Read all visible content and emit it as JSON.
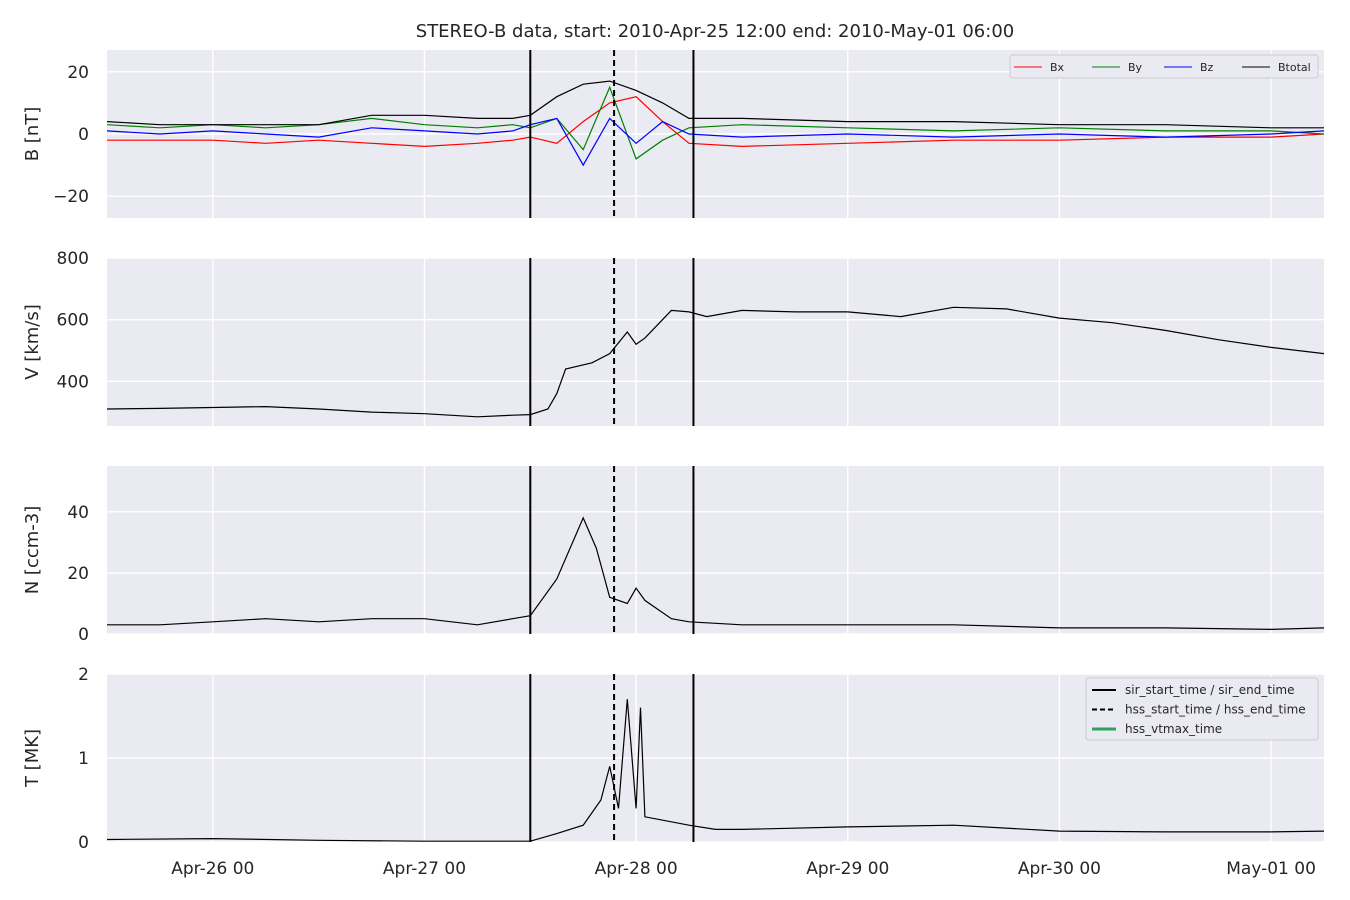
{
  "title": "STEREO-B data, start: 2010-Apr-25 12:00  end: 2010-May-01 06:00",
  "chart_data": {
    "type": "line",
    "x_range": [
      "2010-04-25T12:00",
      "2010-05-01T06:00"
    ],
    "x_ticks": [
      {
        "t": "2010-04-26T00:00",
        "label": "Apr-26 00"
      },
      {
        "t": "2010-04-27T00:00",
        "label": "Apr-27 00"
      },
      {
        "t": "2010-04-28T00:00",
        "label": "Apr-28 00"
      },
      {
        "t": "2010-04-29T00:00",
        "label": "Apr-29 00"
      },
      {
        "t": "2010-04-30T00:00",
        "label": "Apr-30 00"
      },
      {
        "t": "2010-05-01T00:00",
        "label": "May-01 00"
      }
    ],
    "events": [
      {
        "t": "2010-04-27T12:00",
        "style": "solid"
      },
      {
        "t": "2010-04-27T21:30",
        "style": "dashed"
      },
      {
        "t": "2010-04-28T06:30",
        "style": "solid"
      }
    ],
    "panels": [
      {
        "id": "B",
        "ylabel": "B [nT]",
        "ylim": [
          -27,
          27
        ],
        "yticks": [
          {
            "v": -20,
            "label": "−20"
          },
          {
            "v": 0,
            "label": "0"
          },
          {
            "v": 20,
            "label": "20"
          }
        ],
        "legend": {
          "placement": "top-right",
          "entries": [
            "Bx",
            "By",
            "Bz",
            "Btotal"
          ]
        },
        "series": [
          {
            "name": "Bx",
            "color": "#ff0000",
            "points": [
              [
                "2010-04-25T12:00",
                -2
              ],
              [
                "2010-04-25T18:00",
                -2
              ],
              [
                "2010-04-26T00:00",
                -2
              ],
              [
                "2010-04-26T06:00",
                -3
              ],
              [
                "2010-04-26T12:00",
                -2
              ],
              [
                "2010-04-26T18:00",
                -3
              ],
              [
                "2010-04-27T00:00",
                -4
              ],
              [
                "2010-04-27T06:00",
                -3
              ],
              [
                "2010-04-27T10:00",
                -2
              ],
              [
                "2010-04-27T12:00",
                -1
              ],
              [
                "2010-04-27T15:00",
                -3
              ],
              [
                "2010-04-27T18:00",
                4
              ],
              [
                "2010-04-27T21:00",
                10
              ],
              [
                "2010-04-28T00:00",
                12
              ],
              [
                "2010-04-28T03:00",
                4
              ],
              [
                "2010-04-28T06:00",
                -3
              ],
              [
                "2010-04-28T12:00",
                -4
              ],
              [
                "2010-04-29T00:00",
                -3
              ],
              [
                "2010-04-29T12:00",
                -2
              ],
              [
                "2010-04-30T00:00",
                -2
              ],
              [
                "2010-04-30T12:00",
                -1
              ],
              [
                "2010-05-01T00:00",
                -1
              ],
              [
                "2010-05-01T06:00",
                0
              ]
            ]
          },
          {
            "name": "By",
            "color": "#008000",
            "points": [
              [
                "2010-04-25T12:00",
                3
              ],
              [
                "2010-04-25T18:00",
                2
              ],
              [
                "2010-04-26T00:00",
                3
              ],
              [
                "2010-04-26T06:00",
                2
              ],
              [
                "2010-04-26T12:00",
                3
              ],
              [
                "2010-04-26T18:00",
                5
              ],
              [
                "2010-04-27T00:00",
                3
              ],
              [
                "2010-04-27T06:00",
                2
              ],
              [
                "2010-04-27T10:00",
                3
              ],
              [
                "2010-04-27T12:00",
                2
              ],
              [
                "2010-04-27T15:00",
                5
              ],
              [
                "2010-04-27T18:00",
                -5
              ],
              [
                "2010-04-27T21:00",
                15
              ],
              [
                "2010-04-28T00:00",
                -8
              ],
              [
                "2010-04-28T03:00",
                -2
              ],
              [
                "2010-04-28T06:00",
                2
              ],
              [
                "2010-04-28T12:00",
                3
              ],
              [
                "2010-04-29T00:00",
                2
              ],
              [
                "2010-04-29T12:00",
                1
              ],
              [
                "2010-04-30T00:00",
                2
              ],
              [
                "2010-04-30T12:00",
                1
              ],
              [
                "2010-05-01T00:00",
                1
              ],
              [
                "2010-05-01T06:00",
                0
              ]
            ]
          },
          {
            "name": "Bz",
            "color": "#0000ff",
            "points": [
              [
                "2010-04-25T12:00",
                1
              ],
              [
                "2010-04-25T18:00",
                0
              ],
              [
                "2010-04-26T00:00",
                1
              ],
              [
                "2010-04-26T06:00",
                0
              ],
              [
                "2010-04-26T12:00",
                -1
              ],
              [
                "2010-04-26T18:00",
                2
              ],
              [
                "2010-04-27T00:00",
                1
              ],
              [
                "2010-04-27T06:00",
                0
              ],
              [
                "2010-04-27T10:00",
                1
              ],
              [
                "2010-04-27T12:00",
                3
              ],
              [
                "2010-04-27T15:00",
                5
              ],
              [
                "2010-04-27T18:00",
                -10
              ],
              [
                "2010-04-27T21:00",
                5
              ],
              [
                "2010-04-28T00:00",
                -3
              ],
              [
                "2010-04-28T03:00",
                4
              ],
              [
                "2010-04-28T06:00",
                0
              ],
              [
                "2010-04-28T12:00",
                -1
              ],
              [
                "2010-04-29T00:00",
                0
              ],
              [
                "2010-04-29T12:00",
                -1
              ],
              [
                "2010-04-30T00:00",
                0
              ],
              [
                "2010-04-30T12:00",
                -1
              ],
              [
                "2010-05-01T00:00",
                0
              ],
              [
                "2010-05-01T06:00",
                1
              ]
            ]
          },
          {
            "name": "Btotal",
            "color": "#000000",
            "points": [
              [
                "2010-04-25T12:00",
                4
              ],
              [
                "2010-04-25T18:00",
                3
              ],
              [
                "2010-04-26T00:00",
                3
              ],
              [
                "2010-04-26T06:00",
                3
              ],
              [
                "2010-04-26T12:00",
                3
              ],
              [
                "2010-04-26T18:00",
                6
              ],
              [
                "2010-04-27T00:00",
                6
              ],
              [
                "2010-04-27T06:00",
                5
              ],
              [
                "2010-04-27T10:00",
                5
              ],
              [
                "2010-04-27T12:00",
                6
              ],
              [
                "2010-04-27T15:00",
                12
              ],
              [
                "2010-04-27T18:00",
                16
              ],
              [
                "2010-04-27T21:00",
                17
              ],
              [
                "2010-04-28T00:00",
                14
              ],
              [
                "2010-04-28T03:00",
                10
              ],
              [
                "2010-04-28T06:00",
                5
              ],
              [
                "2010-04-28T12:00",
                5
              ],
              [
                "2010-04-29T00:00",
                4
              ],
              [
                "2010-04-29T12:00",
                4
              ],
              [
                "2010-04-30T00:00",
                3
              ],
              [
                "2010-04-30T12:00",
                3
              ],
              [
                "2010-05-01T00:00",
                2
              ],
              [
                "2010-05-01T06:00",
                2
              ]
            ]
          }
        ]
      },
      {
        "id": "V",
        "ylabel": "V [km/s]",
        "ylim": [
          255,
          800
        ],
        "yticks": [
          {
            "v": 400,
            "label": "400"
          },
          {
            "v": 600,
            "label": "600"
          },
          {
            "v": 800,
            "label": "800"
          }
        ],
        "series": [
          {
            "name": "",
            "color": "#000000",
            "points": [
              [
                "2010-04-25T12:00",
                310
              ],
              [
                "2010-04-25T18:00",
                312
              ],
              [
                "2010-04-26T00:00",
                315
              ],
              [
                "2010-04-26T06:00",
                318
              ],
              [
                "2010-04-26T12:00",
                310
              ],
              [
                "2010-04-26T18:00",
                300
              ],
              [
                "2010-04-27T00:00",
                295
              ],
              [
                "2010-04-27T06:00",
                285
              ],
              [
                "2010-04-27T10:00",
                290
              ],
              [
                "2010-04-27T12:00",
                292
              ],
              [
                "2010-04-27T14:00",
                310
              ],
              [
                "2010-04-27T15:00",
                360
              ],
              [
                "2010-04-27T16:00",
                440
              ],
              [
                "2010-04-27T19:00",
                460
              ],
              [
                "2010-04-27T21:00",
                490
              ],
              [
                "2010-04-27T23:00",
                560
              ],
              [
                "2010-04-28T00:00",
                520
              ],
              [
                "2010-04-28T01:00",
                540
              ],
              [
                "2010-04-28T04:00",
                630
              ],
              [
                "2010-04-28T06:00",
                625
              ],
              [
                "2010-04-28T08:00",
                610
              ],
              [
                "2010-04-28T12:00",
                630
              ],
              [
                "2010-04-28T18:00",
                625
              ],
              [
                "2010-04-29T00:00",
                625
              ],
              [
                "2010-04-29T06:00",
                610
              ],
              [
                "2010-04-29T12:00",
                640
              ],
              [
                "2010-04-29T18:00",
                635
              ],
              [
                "2010-04-30T00:00",
                605
              ],
              [
                "2010-04-30T06:00",
                590
              ],
              [
                "2010-04-30T12:00",
                565
              ],
              [
                "2010-04-30T18:00",
                535
              ],
              [
                "2010-05-01T00:00",
                510
              ],
              [
                "2010-05-01T06:00",
                490
              ]
            ]
          }
        ]
      },
      {
        "id": "N",
        "ylabel": "N [ccm-3]",
        "ylim": [
          0,
          55
        ],
        "yticks": [
          {
            "v": 0,
            "label": "0"
          },
          {
            "v": 20,
            "label": "20"
          },
          {
            "v": 40,
            "label": "40"
          }
        ],
        "series": [
          {
            "name": "",
            "color": "#000000",
            "points": [
              [
                "2010-04-25T12:00",
                3
              ],
              [
                "2010-04-25T18:00",
                3
              ],
              [
                "2010-04-26T00:00",
                4
              ],
              [
                "2010-04-26T06:00",
                5
              ],
              [
                "2010-04-26T12:00",
                4
              ],
              [
                "2010-04-26T18:00",
                5
              ],
              [
                "2010-04-27T00:00",
                5
              ],
              [
                "2010-04-27T06:00",
                3
              ],
              [
                "2010-04-27T10:00",
                5
              ],
              [
                "2010-04-27T12:00",
                6
              ],
              [
                "2010-04-27T15:00",
                18
              ],
              [
                "2010-04-27T18:00",
                38
              ],
              [
                "2010-04-27T19:30",
                28
              ],
              [
                "2010-04-27T21:00",
                12
              ],
              [
                "2010-04-27T23:00",
                10
              ],
              [
                "2010-04-28T00:00",
                15
              ],
              [
                "2010-04-28T01:00",
                11
              ],
              [
                "2010-04-28T04:00",
                5
              ],
              [
                "2010-04-28T06:00",
                4
              ],
              [
                "2010-04-28T12:00",
                3
              ],
              [
                "2010-04-29T00:00",
                3
              ],
              [
                "2010-04-29T12:00",
                3
              ],
              [
                "2010-04-30T00:00",
                2
              ],
              [
                "2010-04-30T12:00",
                2
              ],
              [
                "2010-05-01T00:00",
                1.5
              ],
              [
                "2010-05-01T06:00",
                2
              ]
            ]
          }
        ]
      },
      {
        "id": "T",
        "ylabel": "T [MK]",
        "ylim": [
          0,
          2
        ],
        "yticks": [
          {
            "v": 0,
            "label": "0"
          },
          {
            "v": 1,
            "label": "1"
          },
          {
            "v": 2,
            "label": "2"
          }
        ],
        "legend": {
          "placement": "top-right",
          "entries": [
            "sir_start_time / sir_end_time",
            "hss_start_time / hss_end_time",
            "hss_vtmax_time"
          ],
          "colors": [
            "#000000",
            "#000000",
            "#2ca25f"
          ]
        },
        "series": [
          {
            "name": "",
            "color": "#000000",
            "points": [
              [
                "2010-04-25T12:00",
                0.03
              ],
              [
                "2010-04-26T00:00",
                0.04
              ],
              [
                "2010-04-26T12:00",
                0.02
              ],
              [
                "2010-04-27T00:00",
                0.01
              ],
              [
                "2010-04-27T12:00",
                0.01
              ],
              [
                "2010-04-27T15:00",
                0.1
              ],
              [
                "2010-04-27T18:00",
                0.2
              ],
              [
                "2010-04-27T20:00",
                0.5
              ],
              [
                "2010-04-27T21:00",
                0.9
              ],
              [
                "2010-04-27T22:00",
                0.4
              ],
              [
                "2010-04-27T23:00",
                1.7
              ],
              [
                "2010-04-28T00:00",
                0.4
              ],
              [
                "2010-04-28T00:30",
                1.6
              ],
              [
                "2010-04-28T01:00",
                0.3
              ],
              [
                "2010-04-28T06:00",
                0.2
              ],
              [
                "2010-04-28T09:00",
                0.15
              ],
              [
                "2010-04-28T12:00",
                0.15
              ],
              [
                "2010-04-29T00:00",
                0.18
              ],
              [
                "2010-04-29T12:00",
                0.2
              ],
              [
                "2010-04-30T00:00",
                0.13
              ],
              [
                "2010-04-30T12:00",
                0.12
              ],
              [
                "2010-05-01T00:00",
                0.12
              ],
              [
                "2010-05-01T06:00",
                0.13
              ]
            ]
          }
        ]
      }
    ]
  }
}
